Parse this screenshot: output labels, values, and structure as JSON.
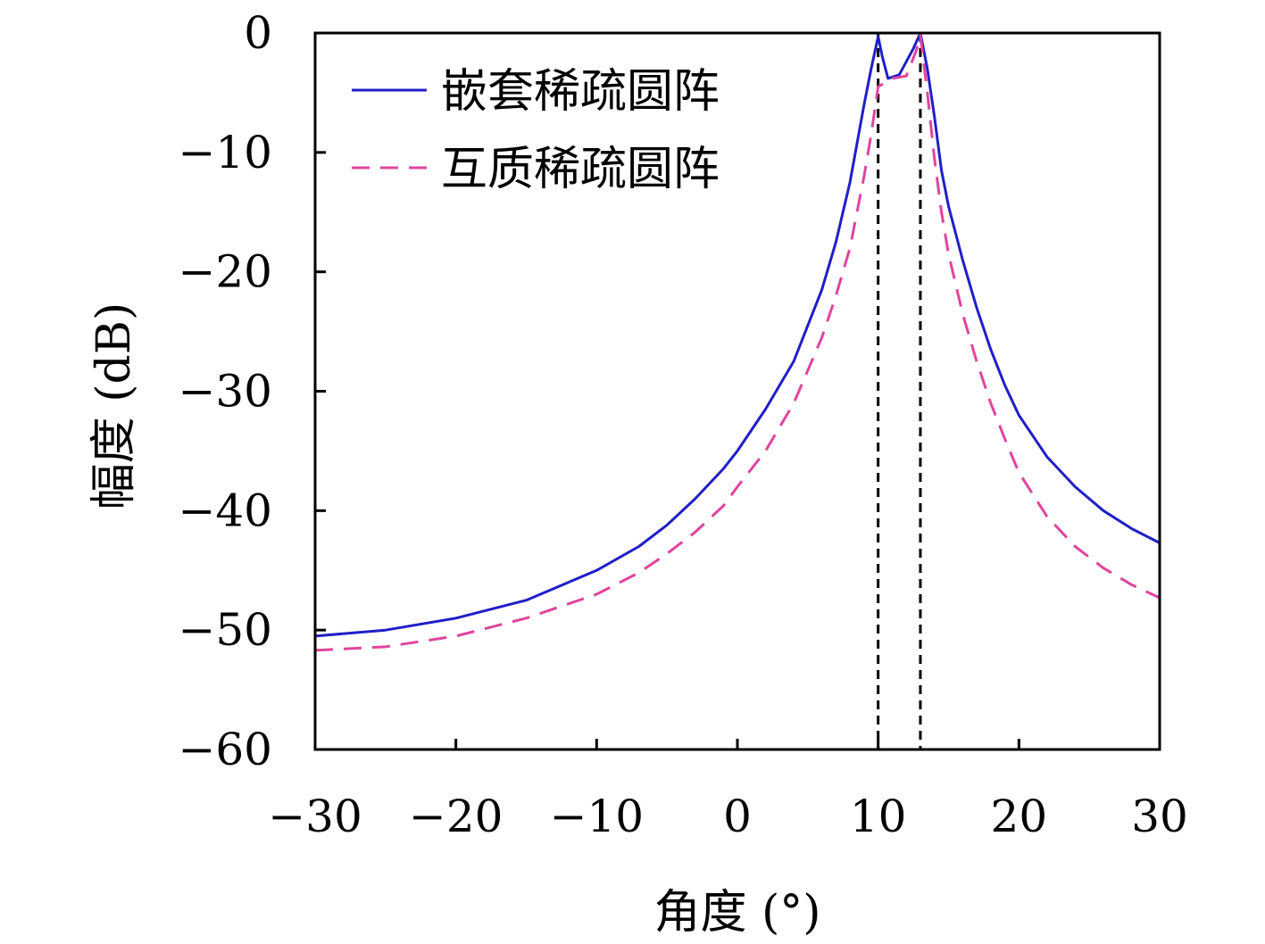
{
  "chart_data": {
    "type": "line",
    "title": "",
    "xlabel": "角度 (°)",
    "ylabel": "幅度 (dB)",
    "xlim": [
      -30,
      30
    ],
    "ylim": [
      -60,
      0
    ],
    "xticks": [
      -30,
      -20,
      -10,
      0,
      10,
      20,
      30
    ],
    "yticks": [
      0,
      -10,
      -20,
      -30,
      -40,
      -50,
      -60
    ],
    "xtick_labels": [
      "−30",
      "−20",
      "−10",
      "0",
      "10",
      "20",
      "30"
    ],
    "ytick_labels": [
      "0",
      "−10",
      "−20",
      "−30",
      "−40",
      "−50",
      "−60"
    ],
    "grid": false,
    "legend_position": "top-left",
    "reference_lines": [
      {
        "x": 10,
        "style": "dashed",
        "color": "#000000"
      },
      {
        "x": 13,
        "style": "dashed",
        "color": "#000000"
      }
    ],
    "series": [
      {
        "name": "嵌套稀疏圆阵",
        "color": "#1f1fc8",
        "style": "solid",
        "x": [
          -30,
          -25,
          -20,
          -15,
          -10,
          -7,
          -5,
          -3,
          -1,
          0,
          2,
          4,
          6,
          7,
          8,
          9,
          9.5,
          10,
          10.3,
          10.7,
          11.5,
          12.5,
          13,
          13.5,
          14,
          14.5,
          15,
          16,
          17,
          18,
          19,
          20,
          22,
          24,
          26,
          28,
          30
        ],
        "values": [
          -50.5,
          -50.0,
          -49.0,
          -47.5,
          -45.0,
          -43.0,
          -41.2,
          -39.0,
          -36.5,
          -35.0,
          -31.5,
          -27.5,
          -21.5,
          -17.5,
          -12.5,
          -6.0,
          -3.0,
          -0.3,
          -2.0,
          -3.8,
          -3.5,
          -1.3,
          0.0,
          -3.0,
          -7.0,
          -11.5,
          -14.5,
          -19.0,
          -23.0,
          -26.5,
          -29.5,
          -32.0,
          -35.5,
          -38.0,
          -40.0,
          -41.5,
          -42.7
        ]
      },
      {
        "name": "互质稀疏圆阵",
        "color": "#e0449e",
        "style": "dashed",
        "x": [
          -30,
          -25,
          -20,
          -15,
          -10,
          -7,
          -5,
          -3,
          -1,
          0,
          2,
          4,
          6,
          7,
          8,
          9,
          9.5,
          10,
          11,
          12,
          12.7,
          13,
          13.5,
          14,
          14.5,
          15,
          16,
          17,
          18,
          19,
          20,
          22,
          24,
          26,
          28,
          30
        ],
        "values": [
          -51.7,
          -51.4,
          -50.5,
          -49.0,
          -47.0,
          -45.2,
          -43.6,
          -41.8,
          -39.6,
          -38.0,
          -35.0,
          -31.0,
          -25.5,
          -22.0,
          -18.0,
          -12.0,
          -8.5,
          -4.5,
          -3.8,
          -3.6,
          -1.5,
          -0.2,
          -5.0,
          -10.5,
          -15.0,
          -18.5,
          -23.5,
          -27.5,
          -31.0,
          -34.0,
          -36.8,
          -40.5,
          -43.0,
          -44.8,
          -46.2,
          -47.3
        ]
      }
    ]
  }
}
